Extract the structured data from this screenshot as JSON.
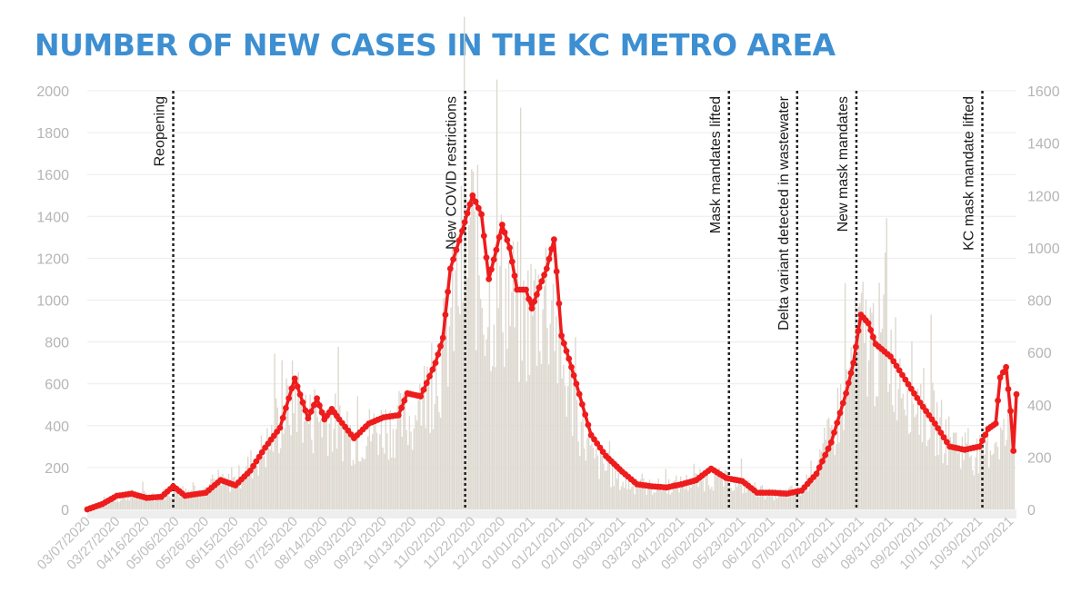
{
  "title": "NUMBER OF NEW CASES IN THE KC METRO AREA",
  "colors": {
    "title": "#3d8fd1",
    "bars": "#ddd8cf",
    "line": "#ee1c1c",
    "axis_text": "#b5b5b5",
    "annotation": "#1a1a1a",
    "grid": "#ececec"
  },
  "chart_data": {
    "type": "line",
    "left_axis": {
      "range": [
        0,
        2000
      ],
      "ticks": [
        "0",
        "200",
        "400",
        "600",
        "800",
        "1000",
        "1200",
        "1400",
        "1600",
        "1800",
        "2000"
      ]
    },
    "right_axis": {
      "range": [
        0,
        1600
      ],
      "ticks": [
        "0",
        "200",
        "400",
        "600",
        "800",
        "1000",
        "1200",
        "1400",
        "1600"
      ]
    },
    "grid": true,
    "x_tick_labels": [
      "03/07/2020",
      "03/27/2020",
      "04/16/2020",
      "05/06/2020",
      "05/26/2020",
      "06/15/2020",
      "07/05/2020",
      "07/25/2020",
      "08/14/2020",
      "09/03/2020",
      "09/23/2020",
      "10/13/2020",
      "11/02/2020",
      "11/22/2020",
      "12/12/2020",
      "01/01/2021",
      "01/21/2021",
      "02/10/2021",
      "03/03/2021",
      "03/23/2021",
      "04/12/2021",
      "05/02/2021",
      "05/23/2021",
      "06/12/2021",
      "07/02/2021",
      "07/22/2021",
      "08/11/2021",
      "08/31/2021",
      "09/20/2021",
      "10/10/2021",
      "10/30/2021",
      "11/20/2021"
    ],
    "series": [
      {
        "type": "bar",
        "axis": "right",
        "points": [
          [
            "03/07/2020",
            0
          ],
          [
            "03/20/2020",
            30
          ],
          [
            "04/05/2020",
            60
          ],
          [
            "04/20/2020",
            55
          ],
          [
            "05/06/2020",
            75
          ],
          [
            "05/26/2020",
            90
          ],
          [
            "06/15/2020",
            120
          ],
          [
            "07/05/2020",
            250
          ],
          [
            "07/25/2020",
            470
          ],
          [
            "08/04/2020",
            360
          ],
          [
            "08/14/2020",
            380
          ],
          [
            "09/03/2020",
            290
          ],
          [
            "09/23/2020",
            340
          ],
          [
            "10/13/2020",
            370
          ],
          [
            "11/02/2020",
            640
          ],
          [
            "11/20/2020",
            1150
          ],
          [
            "12/01/2020",
            860
          ],
          [
            "12/12/2020",
            920
          ],
          [
            "12/25/2020",
            760
          ],
          [
            "01/01/2021",
            820
          ],
          [
            "01/11/2021",
            900
          ],
          [
            "01/21/2021",
            580
          ],
          [
            "02/10/2021",
            210
          ],
          [
            "03/03/2021",
            110
          ],
          [
            "03/23/2021",
            90
          ],
          [
            "04/12/2021",
            105
          ],
          [
            "05/02/2021",
            130
          ],
          [
            "05/23/2021",
            100
          ],
          [
            "06/12/2021",
            60
          ],
          [
            "07/02/2021",
            80
          ],
          [
            "07/22/2021",
            300
          ],
          [
            "08/11/2021",
            720
          ],
          [
            "08/31/2021",
            640
          ],
          [
            "09/20/2021",
            440
          ],
          [
            "10/10/2021",
            280
          ],
          [
            "10/30/2021",
            220
          ],
          [
            "11/10/2021",
            300
          ],
          [
            "11/22/2021",
            300
          ]
        ]
      },
      {
        "type": "line",
        "axis": "left",
        "points": [
          [
            "03/07/2020",
            0
          ],
          [
            "03/17/2020",
            25
          ],
          [
            "03/27/2020",
            65
          ],
          [
            "04/06/2020",
            75
          ],
          [
            "04/16/2020",
            55
          ],
          [
            "04/26/2020",
            60
          ],
          [
            "05/04/2020",
            110
          ],
          [
            "05/12/2020",
            65
          ],
          [
            "05/26/2020",
            80
          ],
          [
            "06/05/2020",
            140
          ],
          [
            "06/15/2020",
            115
          ],
          [
            "06/25/2020",
            185
          ],
          [
            "07/05/2020",
            295
          ],
          [
            "07/15/2020",
            390
          ],
          [
            "07/25/2020",
            625
          ],
          [
            "08/03/2020",
            435
          ],
          [
            "08/09/2020",
            530
          ],
          [
            "08/14/2020",
            430
          ],
          [
            "08/19/2020",
            480
          ],
          [
            "08/24/2020",
            430
          ],
          [
            "09/03/2020",
            340
          ],
          [
            "09/13/2020",
            410
          ],
          [
            "09/23/2020",
            440
          ],
          [
            "10/03/2020",
            450
          ],
          [
            "10/09/2020",
            555
          ],
          [
            "10/18/2020",
            540
          ],
          [
            "10/28/2020",
            700
          ],
          [
            "11/02/2020",
            820
          ],
          [
            "11/07/2020",
            1150
          ],
          [
            "11/15/2020",
            1330
          ],
          [
            "11/22/2020",
            1500
          ],
          [
            "11/28/2020",
            1410
          ],
          [
            "12/03/2020",
            1100
          ],
          [
            "12/08/2020",
            1240
          ],
          [
            "12/12/2020",
            1360
          ],
          [
            "12/17/2020",
            1250
          ],
          [
            "12/22/2020",
            1050
          ],
          [
            "12/28/2020",
            1050
          ],
          [
            "01/01/2021",
            960
          ],
          [
            "01/06/2021",
            1060
          ],
          [
            "01/11/2021",
            1150
          ],
          [
            "01/16/2021",
            1290
          ],
          [
            "01/21/2021",
            830
          ],
          [
            "01/26/2021",
            720
          ],
          [
            "01/31/2021",
            600
          ],
          [
            "02/10/2021",
            355
          ],
          [
            "02/20/2021",
            255
          ],
          [
            "03/03/2021",
            180
          ],
          [
            "03/13/2021",
            120
          ],
          [
            "03/23/2021",
            110
          ],
          [
            "04/02/2021",
            105
          ],
          [
            "04/12/2021",
            120
          ],
          [
            "04/22/2021",
            140
          ],
          [
            "05/02/2021",
            195
          ],
          [
            "05/12/2021",
            150
          ],
          [
            "05/23/2021",
            135
          ],
          [
            "06/02/2021",
            80
          ],
          [
            "06/12/2021",
            80
          ],
          [
            "06/22/2021",
            75
          ],
          [
            "07/02/2021",
            90
          ],
          [
            "07/12/2021",
            170
          ],
          [
            "07/22/2021",
            320
          ],
          [
            "08/01/2021",
            555
          ],
          [
            "08/06/2021",
            700
          ],
          [
            "08/11/2021",
            930
          ],
          [
            "08/16/2021",
            890
          ],
          [
            "08/21/2021",
            790
          ],
          [
            "08/31/2021",
            730
          ],
          [
            "09/10/2021",
            620
          ],
          [
            "09/20/2021",
            510
          ],
          [
            "09/30/2021",
            410
          ],
          [
            "10/10/2021",
            300
          ],
          [
            "10/20/2021",
            285
          ],
          [
            "10/30/2021",
            300
          ],
          [
            "11/05/2021",
            385
          ],
          [
            "11/10/2021",
            410
          ],
          [
            "11/13/2021",
            630
          ],
          [
            "11/17/2021",
            680
          ],
          [
            "11/20/2021",
            470
          ],
          [
            "11/22/2021",
            280
          ],
          [
            "11/24/2021",
            550
          ]
        ]
      }
    ],
    "annotations": [
      {
        "date": "05/04/2020",
        "label": "Reopening"
      },
      {
        "date": "11/17/2020",
        "label": "New COVID restrictions"
      },
      {
        "date": "05/14/2021",
        "label": "Mask mandates lifted"
      },
      {
        "date": "06/29/2021",
        "label": "Delta variant detected in wastewater"
      },
      {
        "date": "08/08/2021",
        "label": "New mask mandates"
      },
      {
        "date": "11/01/2021",
        "label": "KC mask mandate lifted"
      }
    ]
  }
}
